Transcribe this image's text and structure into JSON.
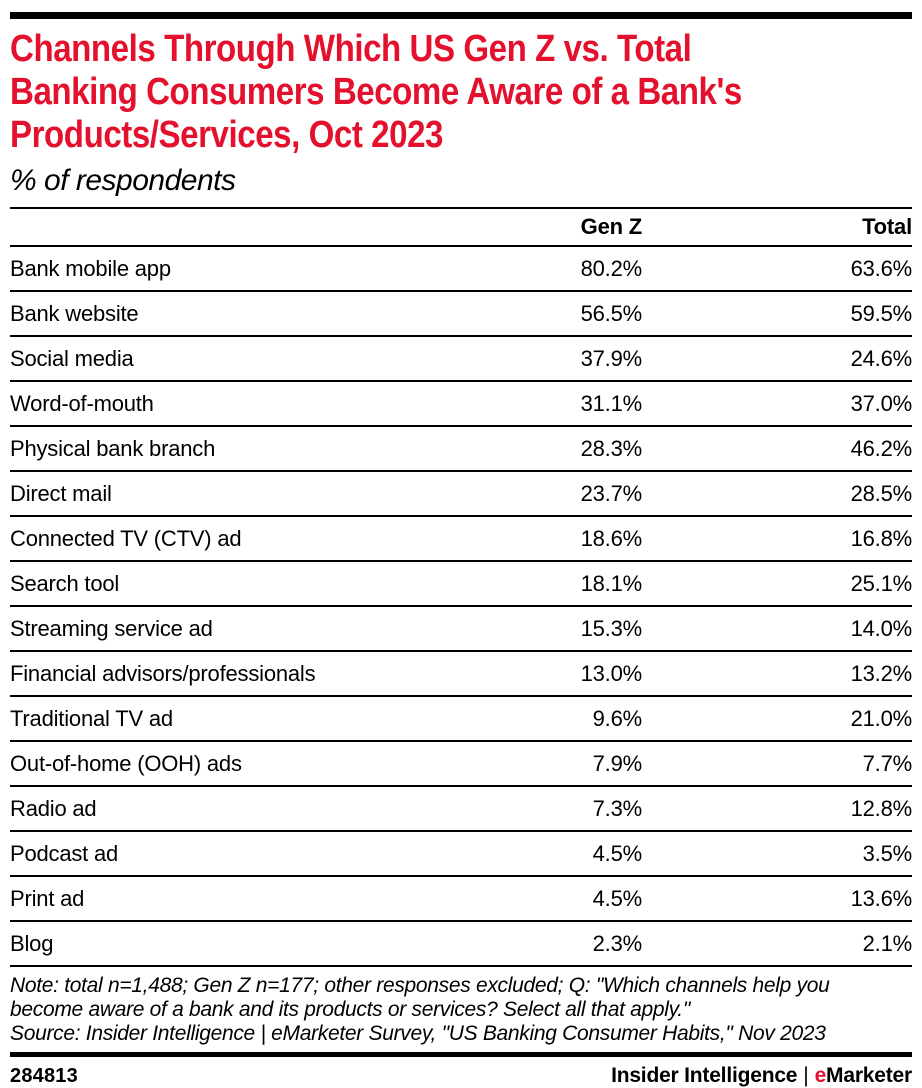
{
  "header": {
    "title_lines": [
      "Channels Through Which US Gen Z vs. Total",
      "Banking Consumers Become Aware of a Bank's",
      "Products/Services, Oct 2023"
    ],
    "subtitle": "% of respondents"
  },
  "table": {
    "columns": {
      "label": "",
      "genz": "Gen Z",
      "total": "Total"
    },
    "rows": [
      {
        "label": "Bank mobile app",
        "genz": "80.2%",
        "total": "63.6%"
      },
      {
        "label": "Bank website",
        "genz": "56.5%",
        "total": "59.5%"
      },
      {
        "label": "Social media",
        "genz": "37.9%",
        "total": "24.6%"
      },
      {
        "label": "Word-of-mouth",
        "genz": "31.1%",
        "total": "37.0%"
      },
      {
        "label": "Physical bank branch",
        "genz": "28.3%",
        "total": "46.2%"
      },
      {
        "label": "Direct mail",
        "genz": "23.7%",
        "total": "28.5%"
      },
      {
        "label": "Connected TV (CTV) ad",
        "genz": "18.6%",
        "total": "16.8%"
      },
      {
        "label": "Search tool",
        "genz": "18.1%",
        "total": "25.1%"
      },
      {
        "label": "Streaming service ad",
        "genz": "15.3%",
        "total": "14.0%"
      },
      {
        "label": "Financial advisors/professionals",
        "genz": "13.0%",
        "total": "13.2%"
      },
      {
        "label": "Traditional TV ad",
        "genz": "9.6%",
        "total": "21.0%"
      },
      {
        "label": "Out-of-home (OOH) ads",
        "genz": "7.9%",
        "total": "7.7%"
      },
      {
        "label": "Radio ad",
        "genz": "7.3%",
        "total": "12.8%"
      },
      {
        "label": "Podcast ad",
        "genz": "4.5%",
        "total": "3.5%"
      },
      {
        "label": "Print ad",
        "genz": "4.5%",
        "total": "13.6%"
      },
      {
        "label": "Blog",
        "genz": "2.3%",
        "total": "2.1%"
      }
    ]
  },
  "footnotes": {
    "note_lines": [
      "Note: total n=1,488; Gen Z n=177; other responses excluded; Q: \"Which channels help you",
      "become aware of a bank and its products or services? Select all that apply.\""
    ],
    "source": "Source: Insider Intelligence | eMarketer Survey, \"US Banking Consumer Habits,\" Nov 2023"
  },
  "footer": {
    "chart_id": "284813",
    "brand_left": "Insider Intelligence",
    "brand_separator": "|",
    "brand_e": "e",
    "brand_rest": "Marketer"
  },
  "colors": {
    "accent_red": "#e3112d",
    "text_black": "#000000"
  },
  "chart_data": {
    "type": "table",
    "title": "Channels Through Which US Gen Z vs. Total Banking Consumers Become Aware of a Bank's Products/Services, Oct 2023",
    "subtitle": "% of respondents",
    "unit": "%",
    "categories": [
      "Bank mobile app",
      "Bank website",
      "Social media",
      "Word-of-mouth",
      "Physical bank branch",
      "Direct mail",
      "Connected TV (CTV) ad",
      "Search tool",
      "Streaming service ad",
      "Financial advisors/professionals",
      "Traditional TV ad",
      "Out-of-home (OOH) ads",
      "Radio ad",
      "Podcast ad",
      "Print ad",
      "Blog"
    ],
    "series": [
      {
        "name": "Gen Z",
        "values": [
          80.2,
          56.5,
          37.9,
          31.1,
          28.3,
          23.7,
          18.6,
          18.1,
          15.3,
          13.0,
          9.6,
          7.9,
          7.3,
          4.5,
          4.5,
          2.3
        ]
      },
      {
        "name": "Total",
        "values": [
          63.6,
          59.5,
          24.6,
          37.0,
          46.2,
          28.5,
          16.8,
          25.1,
          14.0,
          13.2,
          21.0,
          7.7,
          12.8,
          3.5,
          13.6,
          2.1
        ]
      }
    ],
    "note": "Note: total n=1,488; Gen Z n=177; other responses excluded; Q: \"Which channels help you become aware of a bank and its products or services? Select all that apply.\"",
    "source": "Source: Insider Intelligence | eMarketer Survey, \"US Banking Consumer Habits,\" Nov 2023",
    "chart_id": "284813"
  }
}
